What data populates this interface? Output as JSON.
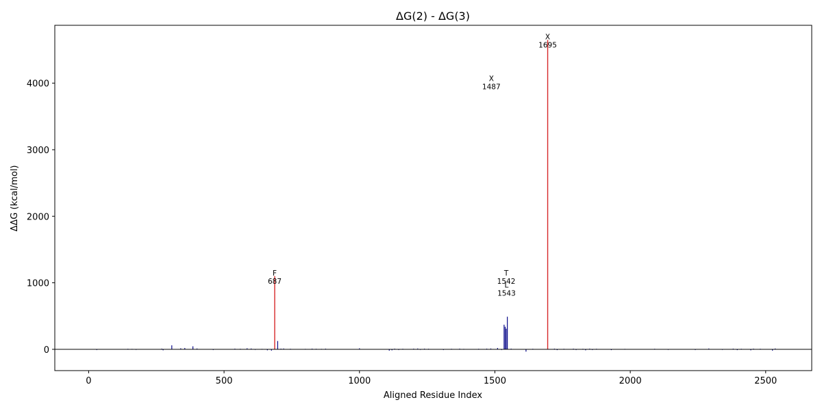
{
  "chart_data": {
    "type": "bar",
    "title": "ΔG(2) - ΔG(3)",
    "xlabel": "Aligned Residue Index",
    "ylabel": "ΔΔG (kcal/mol)",
    "xlim": [
      -125,
      2670
    ],
    "ylim": [
      -320,
      4870
    ],
    "xticks": [
      0,
      500,
      1000,
      1500,
      2000,
      2500
    ],
    "yticks": [
      0,
      1000,
      2000,
      3000,
      4000
    ],
    "grid": false,
    "colors": {
      "normal": "#0b0b8a",
      "highlight": "#d62728",
      "zero_line": "#000000"
    },
    "highlighted_bars": [
      {
        "x": 687,
        "value": 1100
      },
      {
        "x": 1695,
        "value": 4650
      }
    ],
    "small_bars": [
      {
        "x": 30,
        "value": -10
      },
      {
        "x": 145,
        "value": 8
      },
      {
        "x": 160,
        "value": 6
      },
      {
        "x": 175,
        "value": -8
      },
      {
        "x": 270,
        "value": 10
      },
      {
        "x": 275,
        "value": -15
      },
      {
        "x": 307,
        "value": 60
      },
      {
        "x": 340,
        "value": 15
      },
      {
        "x": 355,
        "value": 20
      },
      {
        "x": 385,
        "value": 45
      },
      {
        "x": 400,
        "value": 12
      },
      {
        "x": 460,
        "value": -10
      },
      {
        "x": 540,
        "value": 10
      },
      {
        "x": 560,
        "value": 8
      },
      {
        "x": 585,
        "value": 15
      },
      {
        "x": 600,
        "value": 12
      },
      {
        "x": 615,
        "value": -8
      },
      {
        "x": 640,
        "value": 6
      },
      {
        "x": 660,
        "value": -15
      },
      {
        "x": 675,
        "value": -20
      },
      {
        "x": 698,
        "value": 125
      },
      {
        "x": 710,
        "value": 10
      },
      {
        "x": 720,
        "value": 12
      },
      {
        "x": 745,
        "value": 8
      },
      {
        "x": 800,
        "value": 6
      },
      {
        "x": 825,
        "value": 10
      },
      {
        "x": 840,
        "value": 8
      },
      {
        "x": 860,
        "value": 6
      },
      {
        "x": 875,
        "value": 10
      },
      {
        "x": 1000,
        "value": 15
      },
      {
        "x": 1110,
        "value": -20
      },
      {
        "x": 1120,
        "value": -15
      },
      {
        "x": 1130,
        "value": 10
      },
      {
        "x": 1145,
        "value": -10
      },
      {
        "x": 1160,
        "value": 8
      },
      {
        "x": 1200,
        "value": 10
      },
      {
        "x": 1215,
        "value": 12
      },
      {
        "x": 1225,
        "value": -8
      },
      {
        "x": 1240,
        "value": 10
      },
      {
        "x": 1255,
        "value": 8
      },
      {
        "x": 1310,
        "value": -10
      },
      {
        "x": 1340,
        "value": 8
      },
      {
        "x": 1370,
        "value": 10
      },
      {
        "x": 1385,
        "value": 6
      },
      {
        "x": 1440,
        "value": 8
      },
      {
        "x": 1470,
        "value": 10
      },
      {
        "x": 1485,
        "value": 12
      },
      {
        "x": 1510,
        "value": 20
      },
      {
        "x": 1525,
        "value": -10
      },
      {
        "x": 1534,
        "value": 370
      },
      {
        "x": 1538,
        "value": 340
      },
      {
        "x": 1542,
        "value": 310
      },
      {
        "x": 1546,
        "value": 490
      },
      {
        "x": 1560,
        "value": 10
      },
      {
        "x": 1615,
        "value": -35
      },
      {
        "x": 1640,
        "value": 8
      },
      {
        "x": 1720,
        "value": 10
      },
      {
        "x": 1730,
        "value": -12
      },
      {
        "x": 1755,
        "value": 8
      },
      {
        "x": 1790,
        "value": 10
      },
      {
        "x": 1800,
        "value": -10
      },
      {
        "x": 1825,
        "value": 8
      },
      {
        "x": 1835,
        "value": -15
      },
      {
        "x": 1850,
        "value": 10
      },
      {
        "x": 1860,
        "value": -10
      },
      {
        "x": 1875,
        "value": 8
      },
      {
        "x": 1930,
        "value": -12
      },
      {
        "x": 1980,
        "value": 6
      },
      {
        "x": 2090,
        "value": 8
      },
      {
        "x": 2140,
        "value": -8
      },
      {
        "x": 2240,
        "value": -10
      },
      {
        "x": 2290,
        "value": 12
      },
      {
        "x": 2340,
        "value": -8
      },
      {
        "x": 2380,
        "value": 10
      },
      {
        "x": 2395,
        "value": -12
      },
      {
        "x": 2410,
        "value": 8
      },
      {
        "x": 2445,
        "value": -15
      },
      {
        "x": 2455,
        "value": 10
      },
      {
        "x": 2480,
        "value": 8
      },
      {
        "x": 2525,
        "value": -20
      },
      {
        "x": 2535,
        "value": 12
      }
    ],
    "annotations": [
      {
        "letter": "X",
        "index": "1695",
        "x": 1695,
        "y": 4650
      },
      {
        "letter": "X",
        "index": "1487",
        "x": 1487,
        "y": 4020
      },
      {
        "letter": "F",
        "index": "687",
        "x": 687,
        "y": 1100
      },
      {
        "letter": "T",
        "index": "1542",
        "x": 1542,
        "y": 1100
      },
      {
        "letter": "L",
        "index": "1543",
        "x": 1543,
        "y": 920
      }
    ]
  }
}
